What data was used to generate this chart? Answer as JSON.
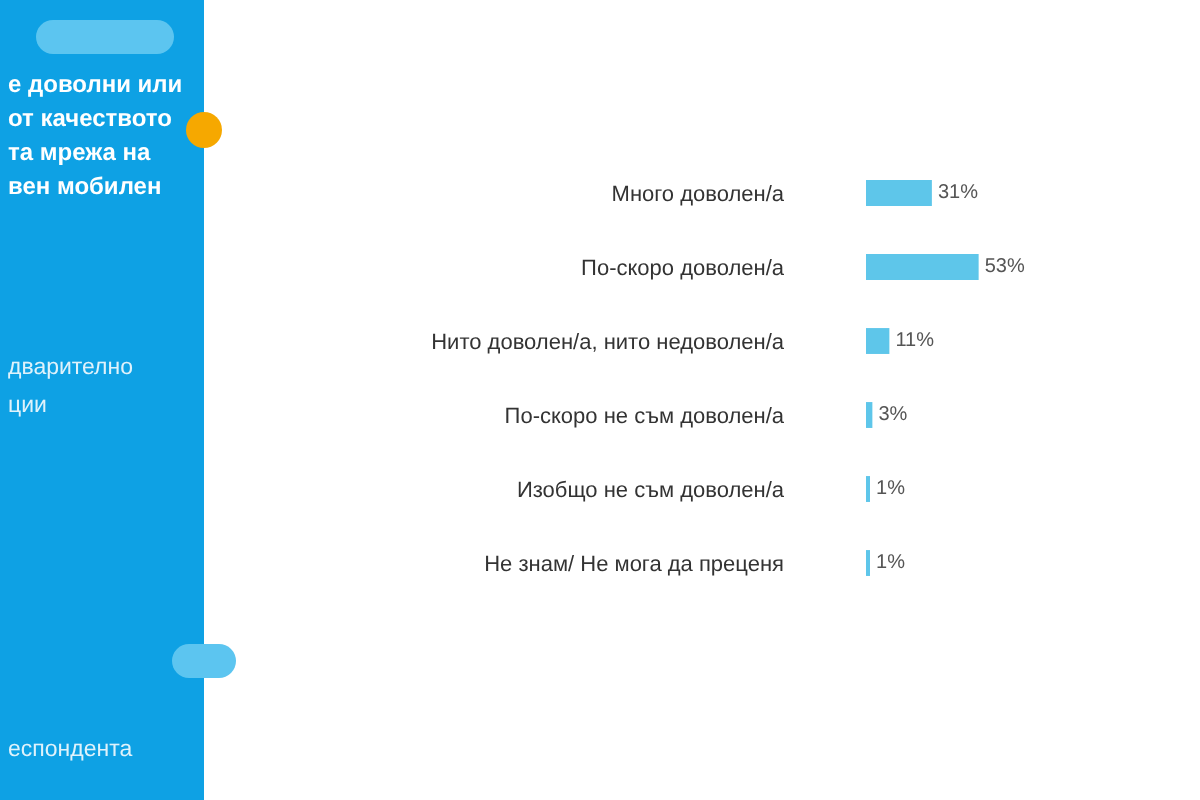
{
  "chart_data": {
    "type": "bar",
    "orientation": "horizontal",
    "title": "е доволни или\nот качеството\nта мрежа на\nвен мобилен",
    "annotations": [
      "дварително\nции",
      "еспондента"
    ],
    "categories": [
      "Много доволен/а",
      "По-скоро доволен/а",
      "Нито доволен/а, нито недоволен/а",
      "По-скоро не съм доволен/а",
      "Изобщо не съм доволен/а",
      "Не знам/ Не мога да преценя"
    ],
    "values": [
      31,
      53,
      11,
      3,
      1,
      1
    ],
    "value_labels": [
      "31%",
      "53%",
      "11%",
      "3%",
      "1%",
      "1%"
    ],
    "color": "#5ec6ea"
  }
}
